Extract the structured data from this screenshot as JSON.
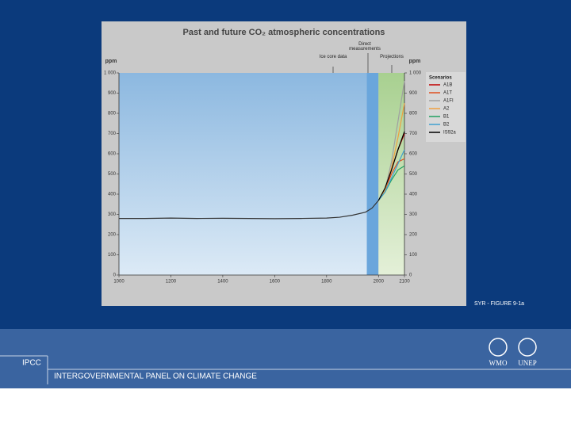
{
  "chart_data": {
    "type": "line",
    "title": "Past and future CO₂ atmospheric concentrations",
    "y_label": "ppm",
    "y2_label": "ppm",
    "annotations": [
      "Ice core data",
      "Direct measurements",
      "Projections"
    ],
    "legend_title": "Scenarios",
    "xlim": [
      1000,
      2100
    ],
    "xticks": [
      1000,
      1200,
      1400,
      1600,
      1800,
      2000,
      2100
    ],
    "ylim": [
      0,
      1000
    ],
    "yticks": [
      0,
      100,
      200,
      300,
      400,
      500,
      600,
      700,
      800,
      900,
      {
        "value": 1000,
        "label": "1 000"
      }
    ],
    "y2lim": [
      0,
      1000
    ],
    "y2ticks": [
      0,
      100,
      200,
      300,
      400,
      500,
      600,
      700,
      800,
      900,
      {
        "value": 1000,
        "label": "1 000"
      }
    ],
    "series": [
      {
        "color": "#333333",
        "x": [
          1000,
          1100,
          1200,
          1300,
          1400,
          1500,
          1600,
          1700,
          1800,
          1850,
          1900,
          1950,
          1975,
          2000
        ],
        "values": [
          280,
          280,
          282,
          280,
          281,
          280,
          279,
          280,
          282,
          286,
          296,
          311,
          331,
          369
        ]
      },
      {
        "name": "A1B",
        "color": "#c00000",
        "x": [
          2000,
          2025,
          2050,
          2075,
          2100
        ],
        "values": [
          369,
          420,
          520,
          620,
          700
        ]
      },
      {
        "name": "A1T",
        "color": "#e05020",
        "x": [
          2000,
          2025,
          2050,
          2075,
          2100
        ],
        "values": [
          369,
          420,
          500,
          560,
          575
        ]
      },
      {
        "name": "A1FI",
        "color": "#a0a0a0",
        "x": [
          2000,
          2025,
          2050,
          2075,
          2100
        ],
        "values": [
          369,
          420,
          560,
          760,
          960
        ]
      },
      {
        "name": "A2",
        "color": "#f0a040",
        "x": [
          2000,
          2025,
          2050,
          2075,
          2100
        ],
        "values": [
          369,
          420,
          530,
          680,
          850
        ]
      },
      {
        "name": "B1",
        "color": "#20a060",
        "x": [
          2000,
          2025,
          2050,
          2075,
          2100
        ],
        "values": [
          369,
          410,
          470,
          520,
          540
        ]
      },
      {
        "name": "B2",
        "color": "#40a0d0",
        "x": [
          2000,
          2025,
          2050,
          2075,
          2100
        ],
        "values": [
          369,
          410,
          480,
          550,
          620
        ]
      },
      {
        "name": "IS92a",
        "color": "#000000",
        "x": [
          2000,
          2025,
          2050,
          2075,
          2100
        ],
        "values": [
          369,
          430,
          520,
          620,
          710
        ]
      }
    ]
  },
  "figure_label": "SYR - FIGURE 9-1a",
  "footer": {
    "acronym": "IPCC",
    "name": "INTERGOVERNMENTAL PANEL ON CLIMATE CHANGE",
    "logos": [
      "WMO",
      "UNEP"
    ]
  }
}
